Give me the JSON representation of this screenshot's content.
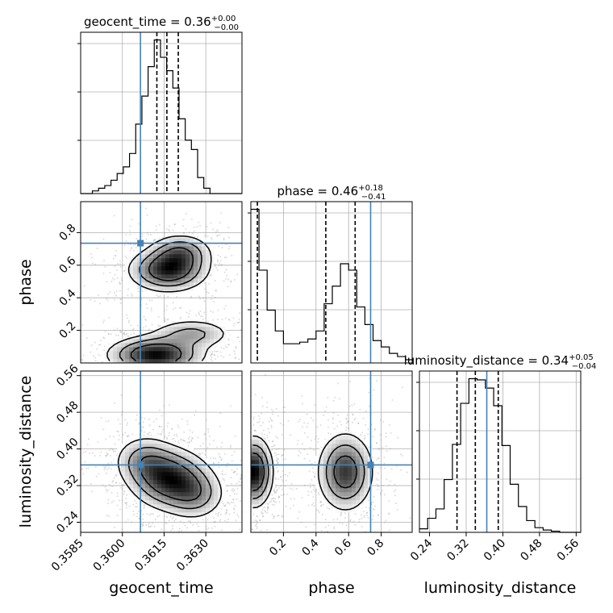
{
  "chart_data": {
    "type": "corner",
    "parameters": [
      "geocent_time",
      "phase",
      "luminosity_distance"
    ],
    "truths": {
      "geocent_time": 0.36065,
      "phase": 0.735,
      "luminosity_distance": 0.365
    },
    "panel_titles": [
      {
        "param": "geocent_time",
        "text": "geocent_time = 0.36",
        "sup": "+0.00",
        "sub": "−0.00"
      },
      {
        "param": "phase",
        "text": "phase = 0.46",
        "sup": "+0.18",
        "sub": "−0.41"
      },
      {
        "param": "luminosity_distance",
        "text": "luminosity_distance = 0.34",
        "sup": "+0.05",
        "sub": "−0.04"
      }
    ],
    "axes": {
      "geocent_time": {
        "label": "geocent_time",
        "range": [
          0.3585,
          0.3643
        ],
        "ticks": [
          0.3585,
          0.36,
          0.3615,
          0.363
        ],
        "tick_labels": [
          "0.3585",
          "0.3600",
          "0.3615",
          "0.3630"
        ]
      },
      "phase": {
        "label": "phase",
        "range": [
          0.0,
          0.99
        ],
        "ticks": [
          0.2,
          0.4,
          0.6,
          0.8
        ],
        "tick_labels": [
          "0.2",
          "0.4",
          "0.6",
          "0.8"
        ]
      },
      "luminosity_distance": {
        "label": "luminosity_distance",
        "range": [
          0.218,
          0.57
        ],
        "ticks": [
          0.24,
          0.32,
          0.4,
          0.48,
          0.56
        ],
        "tick_labels": [
          "0.24",
          "0.32",
          "0.40",
          "0.48",
          "0.56"
        ]
      }
    },
    "quantiles": {
      "geocent_time": [
        0.36124,
        0.3616,
        0.36201
      ],
      "phase": [
        0.04,
        0.46,
        0.64
      ],
      "luminosity_distance": [
        0.3,
        0.34,
        0.39
      ]
    },
    "histograms": {
      "geocent_time": {
        "edges": [
          0.3585,
          0.358922,
          0.359144,
          0.359367,
          0.35959,
          0.359812,
          0.360035,
          0.360257,
          0.36048,
          0.360702,
          0.360925,
          0.361147,
          0.36137,
          0.361592,
          0.361815,
          0.362037,
          0.36226,
          0.362482,
          0.362705,
          0.362927,
          0.36315,
          0.363372,
          0.363594,
          0.363817,
          0.364039,
          0.3643
        ],
        "counts": [
          0,
          2,
          4,
          6,
          10,
          15,
          20,
          30,
          52,
          73,
          95,
          115,
          102,
          92,
          79,
          56,
          40,
          33,
          12,
          4,
          0,
          0,
          0,
          0,
          0
        ]
      },
      "phase": {
        "edges": [
          0.0,
          0.05,
          0.1,
          0.15,
          0.2,
          0.25,
          0.3,
          0.35,
          0.4,
          0.45,
          0.5,
          0.55,
          0.6,
          0.65,
          0.7,
          0.75,
          0.8,
          0.85,
          0.9,
          0.95,
          0.99
        ],
        "counts": [
          96,
          58,
          33,
          20,
          12,
          12,
          13,
          15,
          20,
          37,
          48,
          62,
          58,
          35,
          24,
          14,
          10,
          6,
          4,
          2
        ]
      },
      "luminosity_distance": {
        "edges": [
          0.218,
          0.236,
          0.254,
          0.272,
          0.29,
          0.308,
          0.326,
          0.344,
          0.362,
          0.38,
          0.398,
          0.416,
          0.434,
          0.452,
          0.47,
          0.488,
          0.506,
          0.524,
          0.542,
          0.57
        ],
        "counts": [
          3,
          12,
          20,
          45,
          75,
          110,
          131,
          130,
          123,
          108,
          74,
          41,
          22,
          10,
          4,
          2,
          1,
          0,
          0
        ]
      }
    },
    "density_2d": [
      {
        "x": "geocent_time",
        "y": "phase",
        "blobs": [
          {
            "cx": 0.36165,
            "cy": 0.57,
            "sx": 0.00075,
            "sy": 0.07,
            "w": 1.0
          },
          {
            "cx": 0.3621,
            "cy": 0.68,
            "sx": 0.0006,
            "sy": 0.06,
            "w": 0.6
          },
          {
            "cx": 0.3612,
            "cy": 0.05,
            "sx": 0.0009,
            "sy": 0.06,
            "w": 1.1
          },
          {
            "cx": 0.3625,
            "cy": 0.18,
            "sx": 0.0008,
            "sy": 0.05,
            "w": 0.45
          }
        ]
      },
      {
        "x": "geocent_time",
        "y": "luminosity_distance",
        "blobs": [
          {
            "cx": 0.3617,
            "cy": 0.335,
            "sx": 0.00075,
            "sy": 0.035,
            "w": 1.0
          },
          {
            "cx": 0.3608,
            "cy": 0.375,
            "sx": 0.0006,
            "sy": 0.03,
            "w": 0.5
          },
          {
            "cx": 0.3626,
            "cy": 0.3,
            "sx": 0.0006,
            "sy": 0.03,
            "w": 0.5
          }
        ]
      },
      {
        "x": "phase",
        "y": "luminosity_distance",
        "blobs": [
          {
            "cx": 0.02,
            "cy": 0.35,
            "sx": 0.06,
            "sy": 0.04,
            "w": 1.0
          },
          {
            "cx": 0.58,
            "cy": 0.35,
            "sx": 0.09,
            "sy": 0.045,
            "w": 0.8
          }
        ]
      }
    ]
  }
}
